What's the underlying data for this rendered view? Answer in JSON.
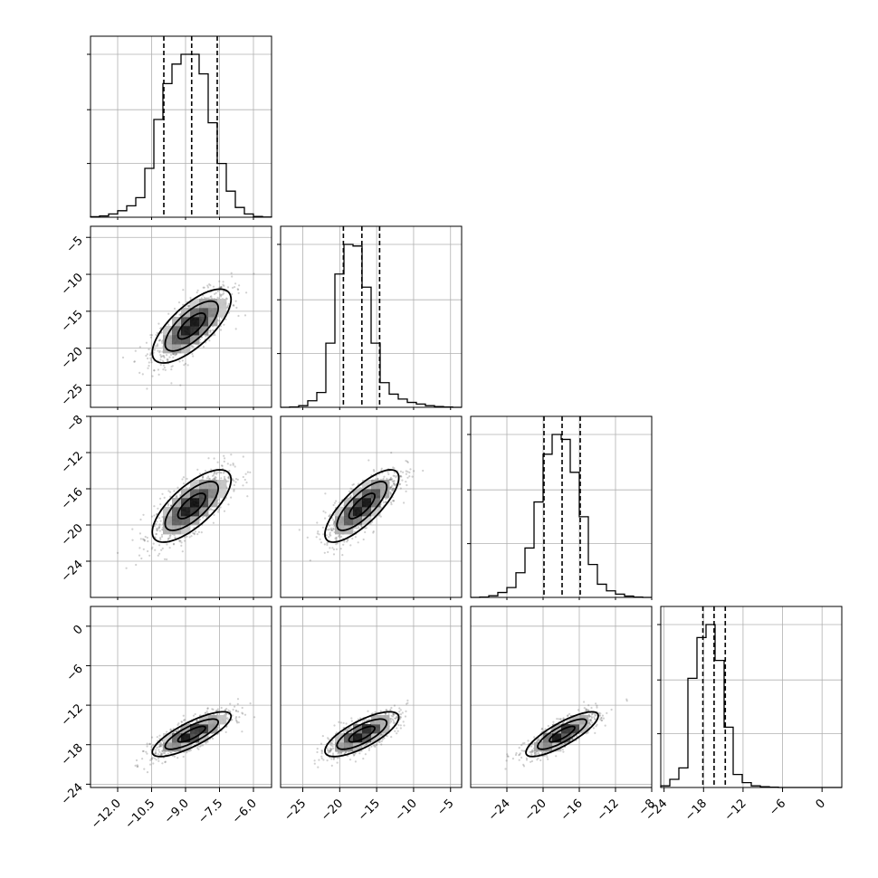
{
  "chart_data": {
    "type": "corner",
    "parameters": [
      {
        "range": [
          -13.2,
          -5.2
        ],
        "ticks": [
          -12.0,
          -10.5,
          -9.0,
          -7.5,
          -6.0
        ],
        "tick_labels": [
          "−12.0",
          "−10.5",
          "−9.0",
          "−7.5",
          "−6.0"
        ],
        "quantiles": [
          -9.96,
          -8.73,
          -7.6
        ],
        "histogram": [
          0.003,
          0.008,
          0.02,
          0.04,
          0.07,
          0.12,
          0.3,
          0.6,
          0.82,
          0.94,
          1.0,
          1.0,
          0.88,
          0.58,
          0.33,
          0.16,
          0.06,
          0.02,
          0.005,
          0.001
        ]
      },
      {
        "range": [
          -28,
          -3.5
        ],
        "ticks": [
          -25,
          -20,
          -15,
          -10,
          -5
        ],
        "tick_labels": [
          "−25",
          "−20",
          "−15",
          "−10",
          "−5"
        ],
        "quantiles": [
          -19.5,
          -17.0,
          -14.6
        ],
        "histogram": [
          0.0,
          0.002,
          0.01,
          0.04,
          0.09,
          0.39,
          0.81,
          0.99,
          0.98,
          0.73,
          0.39,
          0.15,
          0.08,
          0.05,
          0.03,
          0.02,
          0.01,
          0.005,
          0.002,
          0.0
        ]
      },
      {
        "range": [
          -28,
          -8
        ],
        "ticks": [
          -24,
          -20,
          -16,
          -12,
          -8
        ],
        "tick_labels": [
          "−24",
          "−20",
          "−16",
          "−12",
          "−8"
        ],
        "quantiles": [
          -19.9,
          -17.9,
          -15.9
        ],
        "histogram": [
          0.0,
          0.002,
          0.01,
          0.03,
          0.06,
          0.15,
          0.3,
          0.58,
          0.87,
          0.99,
          0.96,
          0.76,
          0.49,
          0.2,
          0.08,
          0.04,
          0.02,
          0.008,
          0.002,
          0.0
        ]
      },
      {
        "range": [
          -24.5,
          3
        ],
        "ticks": [
          -24,
          -18,
          -12,
          -6,
          0
        ],
        "tick_labels": [
          "−24",
          "−18",
          "−12",
          "−6",
          "0"
        ],
        "quantiles": [
          -18.1,
          -16.4,
          -14.7
        ],
        "histogram": [
          0.01,
          0.05,
          0.12,
          0.67,
          0.92,
          1.0,
          0.78,
          0.37,
          0.08,
          0.03,
          0.01,
          0.005,
          0.002,
          0.0,
          0.0,
          0.0,
          0.0,
          0.0,
          0.0,
          0.0
        ]
      }
    ],
    "left_axis_ticks": {
      "row1": {
        "values": [
          -25,
          -20,
          -15,
          -10,
          -5
        ],
        "labels": [
          "−25",
          "−20",
          "−15",
          "−10",
          "−5"
        ]
      },
      "row2": {
        "values": [
          -24,
          -20,
          -16,
          -12,
          -8
        ],
        "labels": [
          "−24",
          "−20",
          "−16",
          "−12",
          "−8"
        ]
      },
      "row3": {
        "values": [
          -24,
          -18,
          -12,
          -6,
          0
        ],
        "labels": [
          "−24",
          "−18",
          "−12",
          "−6",
          "0"
        ]
      }
    },
    "pairs": [
      {
        "row": 1,
        "col": 0,
        "mean": [
          -8.73,
          -17.0
        ],
        "sd": [
          0.87,
          2.5
        ],
        "corr": 0.72
      },
      {
        "row": 2,
        "col": 0,
        "mean": [
          -8.73,
          -17.9
        ],
        "sd": [
          0.87,
          2.0
        ],
        "corr": 0.72
      },
      {
        "row": 2,
        "col": 1,
        "mean": [
          -17.0,
          -17.9
        ],
        "sd": [
          2.5,
          2.0
        ],
        "corr": 0.78
      },
      {
        "row": 3,
        "col": 0,
        "mean": [
          -8.73,
          -16.4
        ],
        "sd": [
          0.87,
          1.7
        ],
        "corr": 0.8
      },
      {
        "row": 3,
        "col": 1,
        "mean": [
          -17.0,
          -16.4
        ],
        "sd": [
          2.5,
          1.7
        ],
        "corr": 0.75
      },
      {
        "row": 3,
        "col": 2,
        "mean": [
          -17.9,
          -16.4
        ],
        "sd": [
          2.0,
          1.7
        ],
        "corr": 0.82
      }
    ],
    "grid": true
  }
}
